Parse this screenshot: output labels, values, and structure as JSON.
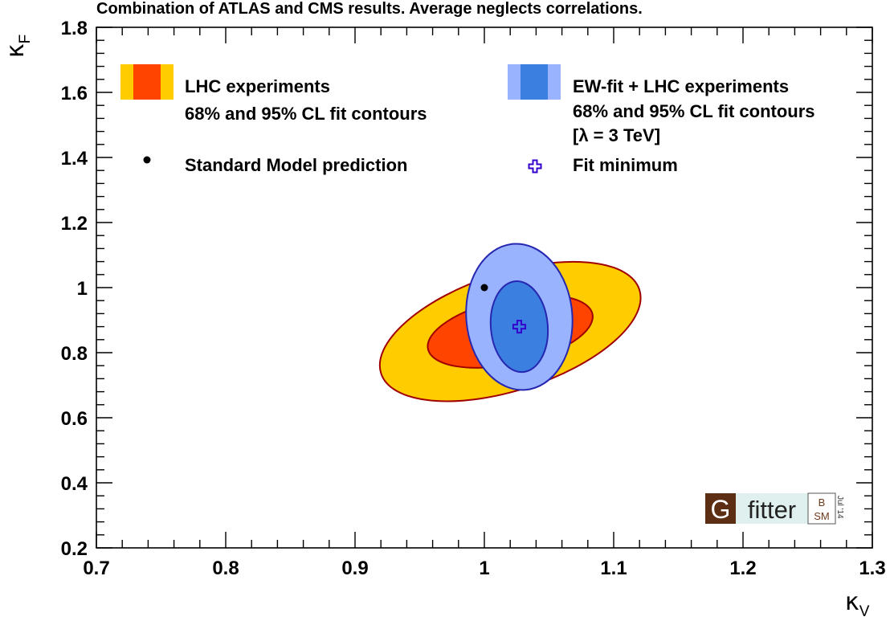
{
  "chart_data": {
    "type": "contour",
    "title": "Combination of ATLAS and CMS results. Average neglects correlations.",
    "xlabel": {
      "symbol": "κ",
      "sub": "V"
    },
    "ylabel": {
      "symbol": "κ",
      "sub": "F"
    },
    "xlim": [
      0.7,
      1.3
    ],
    "ylim": [
      0.2,
      1.8
    ],
    "xticks": [
      0.7,
      0.8,
      0.9,
      1,
      1.1,
      1.2,
      1.3
    ],
    "xtick_labels": [
      "0.7",
      "0.8",
      "0.9",
      "1",
      "1.1",
      "1.2",
      "1.3"
    ],
    "yticks": [
      0.2,
      0.4,
      0.6,
      0.8,
      1,
      1.2,
      1.4,
      1.6,
      1.8
    ],
    "ytick_labels": [
      "0.2",
      "0.4",
      "0.6",
      "0.8",
      "1",
      "1.2",
      "1.4",
      "1.6",
      "1.8"
    ],
    "contours": [
      {
        "name": "LHC 95% CL",
        "center": [
          1.02,
          0.865
        ],
        "semi_axes": [
          0.105,
          0.18
        ],
        "rotation_deg": 18,
        "fill": "#ffcc00",
        "stroke": "#a00000"
      },
      {
        "name": "LHC 68% CL",
        "center": [
          1.02,
          0.865
        ],
        "semi_axes": [
          0.065,
          0.1
        ],
        "rotation_deg": 12,
        "fill": "#ff4400",
        "stroke": "#a00000"
      },
      {
        "name": "EW-fit + LHC 95% CL",
        "center": [
          1.027,
          0.91
        ],
        "semi_axes": [
          0.041,
          0.225
        ],
        "rotation_deg": 5,
        "fill": "#99b3ff",
        "stroke": "#2626b0"
      },
      {
        "name": "EW-fit + LHC 68% CL",
        "center": [
          1.027,
          0.88
        ],
        "semi_axes": [
          0.022,
          0.14
        ],
        "rotation_deg": 5,
        "fill": "#3b7fe0",
        "stroke": "#2626b0"
      }
    ],
    "points": [
      {
        "name": "Standard Model prediction",
        "x": 1.0,
        "y": 1.0,
        "marker": "dot",
        "color": "#000000"
      },
      {
        "name": "Fit minimum",
        "x": 1.027,
        "y": 0.88,
        "marker": "open-cross",
        "color": "#3300cc"
      }
    ],
    "legend": {
      "lhc": {
        "line1": "LHC experiments",
        "line2": "68% and 95% CL fit contours",
        "outer_color": "#ffcc00",
        "inner_color": "#ff4400"
      },
      "ewfit": {
        "line1": "EW-fit + LHC experiments",
        "line2": "68% and 95% CL fit contours",
        "line3": "[λ = 3 TeV]",
        "outer_color": "#99b3ff",
        "inner_color": "#3b7fe0"
      },
      "sm": "Standard Model prediction",
      "fitmin": "Fit minimum"
    },
    "logo": {
      "g": "G",
      "fitter": "fitter",
      "b": "B",
      "sm": "SM",
      "date": "Jul '14"
    }
  }
}
